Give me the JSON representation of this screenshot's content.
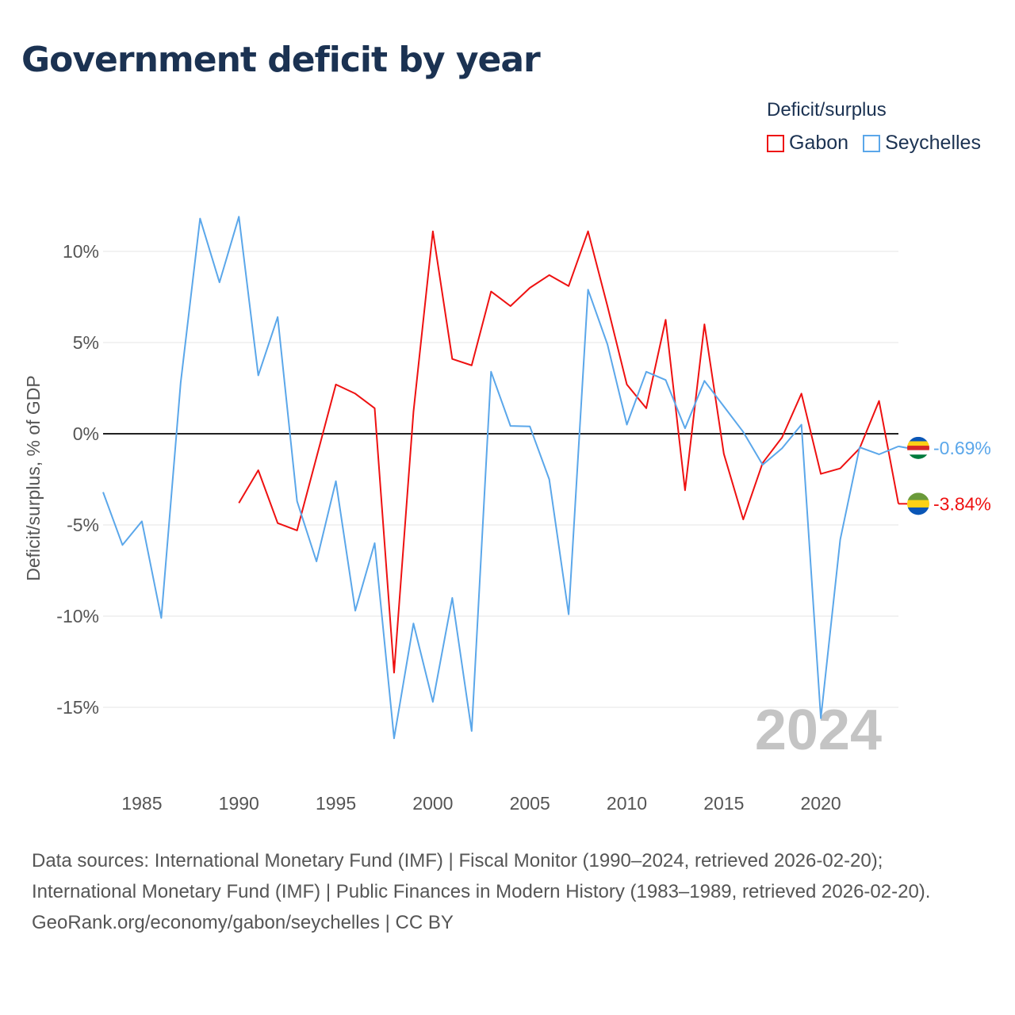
{
  "title": "Government deficit by year",
  "legend": {
    "title": "Deficit/surplus"
  },
  "watermark_year": "2024",
  "footer": {
    "sources": "Data sources: International Monetary Fund (IMF) | Fiscal Monitor (1990–2024, retrieved 2026-02-20); International Monetary Fund (IMF) | Public Finances in Modern History (1983–1989, retrieved 2026-02-20).",
    "credit": "GeoRank.org/economy/gabon/seychelles | CC BY"
  },
  "chart_data": {
    "type": "line",
    "title": "Government deficit by year",
    "xlabel": "",
    "ylabel": "Deficit/surplus, % of GDP",
    "xlim": [
      1983,
      2024
    ],
    "ylim": [
      -18,
      13
    ],
    "yticks": [
      10,
      5,
      0,
      -5,
      -10,
      -15
    ],
    "ytick_labels": [
      "10%",
      "5%",
      "0%",
      "-5%",
      "-10%",
      "-15%"
    ],
    "xticks": [
      1985,
      1990,
      1995,
      2000,
      2005,
      2010,
      2015,
      2020
    ],
    "xtick_labels": [
      "1985",
      "1990",
      "1995",
      "2000",
      "2005",
      "2010",
      "2015",
      "2020"
    ],
    "legend_position": "top-right",
    "series": [
      {
        "name": "Gabon",
        "color": "#ee1111",
        "end_label": "-3.84%",
        "x": [
          1990,
          1991,
          1992,
          1993,
          1994,
          1995,
          1996,
          1997,
          1998,
          1999,
          2000,
          2001,
          2002,
          2003,
          2004,
          2005,
          2006,
          2007,
          2008,
          2009,
          2010,
          2011,
          2012,
          2013,
          2014,
          2015,
          2016,
          2017,
          2018,
          2019,
          2020,
          2021,
          2022,
          2023,
          2024
        ],
        "values": [
          -3.8,
          -2.0,
          -4.9,
          -5.3,
          -1.3,
          2.7,
          2.2,
          1.4,
          -13.1,
          1.2,
          11.1,
          4.1,
          3.75,
          7.8,
          7.0,
          8.0,
          8.7,
          8.1,
          11.1,
          7.0,
          2.7,
          1.4,
          6.25,
          -3.1,
          6.0,
          -1.1,
          -4.7,
          -1.6,
          -0.2,
          2.2,
          -2.2,
          -1.9,
          -0.8,
          1.8,
          -3.84
        ]
      },
      {
        "name": "Seychelles",
        "color": "#5ba7ea",
        "end_label": "-0.69%",
        "x": [
          1983,
          1984,
          1985,
          1986,
          1987,
          1988,
          1989,
          1990,
          1991,
          1992,
          1993,
          1994,
          1995,
          1996,
          1997,
          1998,
          1999,
          2000,
          2001,
          2002,
          2003,
          2004,
          2005,
          2006,
          2007,
          2008,
          2009,
          2010,
          2011,
          2012,
          2013,
          2014,
          2015,
          2016,
          2017,
          2018,
          2019,
          2020,
          2021,
          2022,
          2023,
          2024
        ],
        "values": [
          -3.2,
          -6.1,
          -4.8,
          -10.1,
          2.8,
          11.8,
          8.3,
          11.9,
          3.2,
          6.4,
          -3.7,
          -7.0,
          -2.6,
          -9.7,
          -6.0,
          -16.7,
          -10.4,
          -14.7,
          -9.0,
          -16.3,
          3.4,
          0.43,
          0.4,
          -2.5,
          -9.9,
          7.9,
          4.9,
          0.5,
          3.4,
          2.95,
          0.3,
          2.9,
          1.5,
          0.1,
          -1.7,
          -0.8,
          0.5,
          -15.6,
          -5.8,
          -0.74,
          -1.13,
          -0.69
        ]
      }
    ]
  }
}
